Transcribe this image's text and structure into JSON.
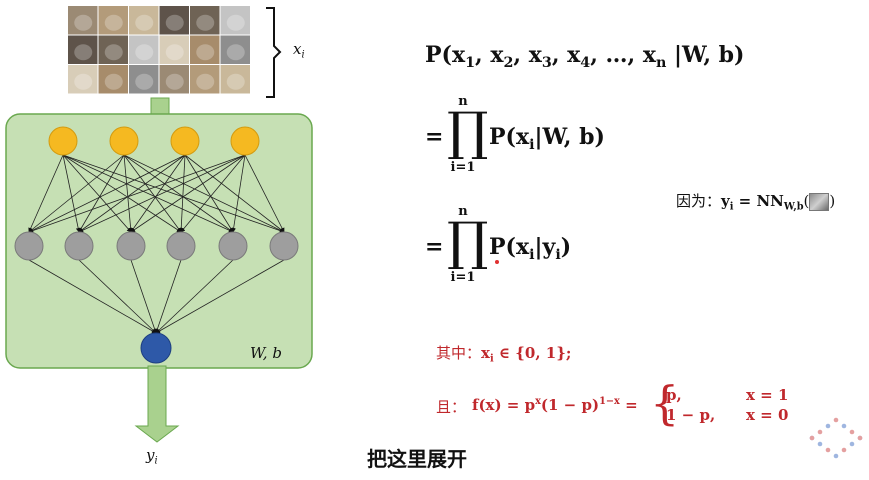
{
  "diagram": {
    "input_label": "x",
    "input_label_sub": "i",
    "output_label": "y",
    "output_label_sub": "i",
    "params_label": "W, b",
    "colors": {
      "box_fill": "#c6e0b4",
      "box_border": "#6aa84f",
      "input_node": "#f5b921",
      "hidden_node": "#9e9e9e",
      "output_node": "#2e59a8",
      "arrow_fill": "#a9d18e"
    }
  },
  "formulas": {
    "line1": {
      "lhs": "P(x",
      "args": [
        "1",
        "2",
        "3",
        "4"
      ],
      "ellipsis": "…",
      "last_sub": "n",
      "given": "|W, b)"
    },
    "line2": {
      "eq": "=",
      "prod_upper": "n",
      "prod_lower": "i=1",
      "body_p": "P(x",
      "body_sub": "i",
      "body_rest": "|W, b)"
    },
    "line3": {
      "eq": "=",
      "prod_upper": "n",
      "prod_lower": "i=1",
      "body_p": "P(x",
      "body_sub": "i",
      "body_mid": "|y",
      "body_sub2": "i",
      "body_end": ")"
    },
    "because": {
      "prefix": "因为：",
      "y": "y",
      "y_sub": "i",
      "eq": " = NN",
      "nn_sub": "W,b",
      "open": "(",
      "close": ")",
      "thumb_icon": "cat-image-icon"
    },
    "where": {
      "prefix": "其中：",
      "x": "x",
      "x_sub": "i",
      "rest": " ∈ {0, 1};"
    },
    "and": {
      "prefix": "且：",
      "lhs": "f(x) = p",
      "sup1": "x",
      "mid": "(1 − p)",
      "sup2": "1−x",
      "eq": " = ",
      "case1_val": "p,",
      "case1_cond": "x = 1",
      "case2_val": "1 − p,",
      "case2_cond": "x = 0"
    }
  },
  "subtitle": "把这里展开"
}
